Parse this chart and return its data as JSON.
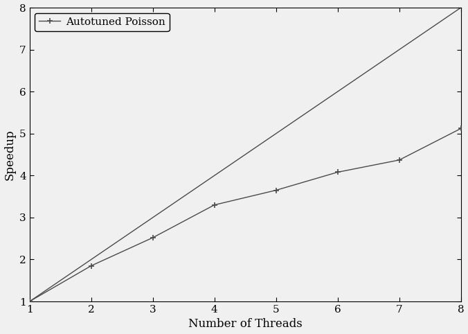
{
  "ideal_x": [
    1,
    2,
    3,
    4,
    5,
    6,
    7,
    8
  ],
  "ideal_y": [
    1,
    2,
    3,
    4,
    5,
    6,
    7,
    8
  ],
  "poisson_x": [
    1,
    2,
    3,
    4,
    5,
    6,
    7,
    8
  ],
  "poisson_y": [
    1.0,
    1.85,
    2.52,
    3.3,
    3.65,
    4.08,
    4.37,
    5.12
  ],
  "ideal_color": "#4a4a4a",
  "poisson_color": "#4a4a4a",
  "xlabel": "Number of Threads",
  "ylabel": "Speedup",
  "xlim": [
    1,
    8
  ],
  "ylim": [
    1,
    8
  ],
  "xticks": [
    1,
    2,
    3,
    4,
    5,
    6,
    7,
    8
  ],
  "yticks": [
    1,
    2,
    3,
    4,
    5,
    6,
    7,
    8
  ],
  "legend_label": "Autotuned Poisson",
  "marker": "+",
  "markersize": 6,
  "markeredgewidth": 1.2,
  "linewidth": 1.0,
  "font_size": 12,
  "label_font_size": 12,
  "tick_font_size": 11,
  "background_color": "#f0f0f0"
}
